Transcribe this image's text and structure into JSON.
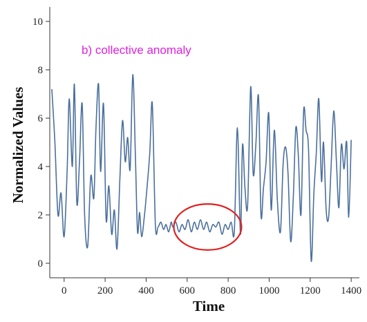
{
  "chart_data": {
    "type": "line",
    "title": "",
    "annotation": "b) collective anomaly",
    "xlabel": "Time",
    "ylabel": "Normalized Values",
    "xlim": [
      -70,
      1440
    ],
    "ylim": [
      -0.6,
      10.6
    ],
    "xticks": [
      0,
      200,
      400,
      600,
      800,
      1000,
      1200,
      1400
    ],
    "yticks": [
      0,
      2,
      4,
      6,
      8,
      10
    ],
    "grid": false,
    "line_color": "#4a6f9c",
    "annotation_color": "#e020e0",
    "highlight_color": "#e02020",
    "highlight_region": {
      "x_center": 700,
      "x_half_width": 165,
      "y_center": 1.5,
      "y_half_height": 0.95
    },
    "series": [
      {
        "x": [
          -60,
          -45,
          -30,
          -15,
          0,
          15,
          25,
          40,
          50,
          62,
          75,
          88,
          100,
          115,
          130,
          145,
          155,
          168,
          178,
          192,
          205,
          218,
          232,
          245,
          258,
          272,
          285,
          298,
          310,
          322,
          335,
          348,
          358,
          368,
          378,
          392,
          405,
          418,
          430,
          445,
          458,
          472,
          485,
          497,
          510,
          522,
          530,
          545,
          560,
          575,
          590,
          605,
          620,
          635,
          650,
          665,
          680,
          695,
          710,
          725,
          740,
          755,
          770,
          785,
          800,
          815,
          830,
          845,
          860,
          870,
          882,
          895,
          910,
          922,
          935,
          948,
          960,
          972,
          985,
          998,
          1010,
          1025,
          1040,
          1055,
          1068,
          1080,
          1092,
          1105,
          1118,
          1130,
          1142,
          1155,
          1168,
          1180,
          1192,
          1205,
          1218,
          1230,
          1242,
          1255,
          1265,
          1278,
          1290,
          1302,
          1315,
          1328,
          1340,
          1352,
          1365,
          1378,
          1388,
          1400
        ],
        "y": [
          7.2,
          5.0,
          2.0,
          2.9,
          1.1,
          3.9,
          6.8,
          4.0,
          7.4,
          2.5,
          4.2,
          6.6,
          2.0,
          0.7,
          3.6,
          2.7,
          5.5,
          7.4,
          3.8,
          6.6,
          1.8,
          3.2,
          1.2,
          2.2,
          0.6,
          3.5,
          5.9,
          4.2,
          5.2,
          3.9,
          7.8,
          4.3,
          1.3,
          2.1,
          1.1,
          2.0,
          3.2,
          4.6,
          6.6,
          1.6,
          1.5,
          1.7,
          1.4,
          1.6,
          1.3,
          1.7,
          1.5,
          1.7,
          1.3,
          1.6,
          1.4,
          1.8,
          1.3,
          1.7,
          1.4,
          1.8,
          1.4,
          1.7,
          1.3,
          1.6,
          1.5,
          1.7,
          1.2,
          1.6,
          1.4,
          1.7,
          1.3,
          5.6,
          1.2,
          4.9,
          3.1,
          2.4,
          7.3,
          3.7,
          4.9,
          6.9,
          2.0,
          3.1,
          4.2,
          6.2,
          2.2,
          5.5,
          2.6,
          1.3,
          4.1,
          4.8,
          3.7,
          0.9,
          2.8,
          5.6,
          4.5,
          2.0,
          6.3,
          5.5,
          4.7,
          0.1,
          2.9,
          4.6,
          6.8,
          3.4,
          5.0,
          2.2,
          1.9,
          4.0,
          6.3,
          4.2,
          2.3,
          4.9,
          3.9,
          5.0,
          1.9,
          5.1
        ]
      }
    ]
  }
}
